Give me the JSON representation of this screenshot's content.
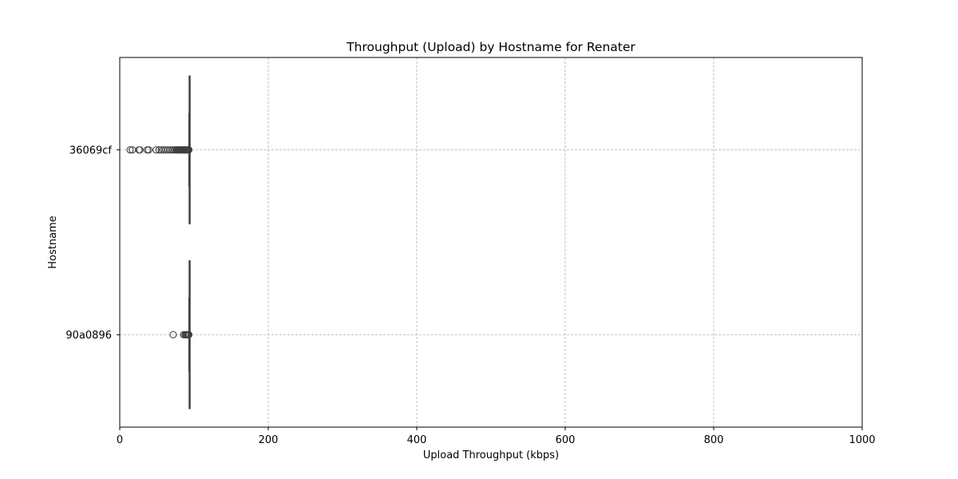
{
  "chart_data": {
    "type": "boxplot",
    "orientation": "horizontal",
    "title": "Throughput (Upload) by Hostname for Renater",
    "xlabel": "Upload Throughput (kbps)",
    "ylabel": "Hostname",
    "xlim": [
      0,
      1000
    ],
    "xticks": [
      0,
      200,
      400,
      600,
      800,
      1000
    ],
    "grid": true,
    "categories": [
      "36069cf",
      "90a0896"
    ],
    "boxes": [
      {
        "category": "36069cf",
        "whisker_low": 93.2,
        "q1": 93.5,
        "median": 93.7,
        "q3": 93.9,
        "whisker_high": 94.0,
        "outliers": [
          14,
          17,
          26,
          27,
          37,
          39,
          49,
          53,
          56,
          59,
          62,
          65,
          68,
          71,
          73,
          75,
          77,
          78,
          79,
          80,
          81,
          82,
          83,
          84,
          85,
          86,
          87,
          88,
          89,
          90,
          91,
          92,
          92.5,
          93
        ]
      },
      {
        "category": "90a0896",
        "whisker_low": 93.2,
        "q1": 93.5,
        "median": 93.7,
        "q3": 93.9,
        "whisker_high": 94.0,
        "outliers": [
          72,
          86,
          88,
          89,
          90,
          91,
          92,
          92.5,
          93
        ]
      }
    ],
    "colors": {
      "box_edge": "#3f3f3f",
      "grid": "#b0b0b0",
      "axes": "#000000"
    }
  }
}
